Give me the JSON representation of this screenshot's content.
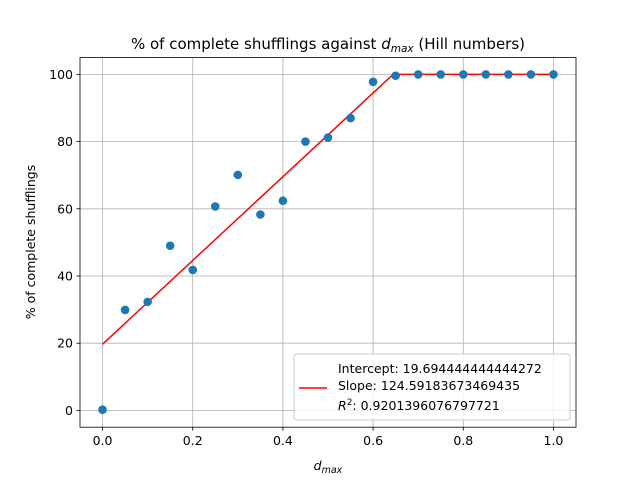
{
  "chart_data": {
    "type": "scatter",
    "title_prefix": "% of complete shufflings against ",
    "title_var": "d",
    "title_var_sub": "max",
    "title_suffix": " (Hill numbers)",
    "xlabel_var": "d",
    "xlabel_sub": "max",
    "ylabel": "% of complete shufflings",
    "xlim": [
      -0.05,
      1.05
    ],
    "ylim": [
      -5,
      105
    ],
    "xticks": [
      0.0,
      0.2,
      0.4,
      0.6,
      0.8,
      1.0
    ],
    "xtick_labels": [
      "0.0",
      "0.2",
      "0.4",
      "0.6",
      "0.8",
      "1.0"
    ],
    "yticks": [
      0,
      20,
      40,
      60,
      80,
      100
    ],
    "ytick_labels": [
      "0",
      "20",
      "40",
      "60",
      "80",
      "100"
    ],
    "grid": true,
    "legend_position": "lower-right",
    "points": {
      "color": "#1f77b4",
      "x": [
        0.0,
        0.05,
        0.1,
        0.15,
        0.2,
        0.25,
        0.3,
        0.35,
        0.4,
        0.45,
        0.5,
        0.55,
        0.6,
        0.65,
        0.7,
        0.75,
        0.8,
        0.85,
        0.9,
        0.95,
        1.0
      ],
      "y": [
        0.2,
        29.9,
        32.3,
        49.0,
        41.8,
        60.7,
        70.1,
        58.3,
        62.4,
        80.0,
        81.2,
        87.0,
        97.8,
        99.6,
        100,
        100,
        100,
        100,
        100,
        100,
        100
      ]
    },
    "fit_line": {
      "color": "#ff0000",
      "x": [
        0.0,
        0.6443,
        0.7,
        0.75,
        0.8,
        0.85,
        0.9,
        0.95,
        1.0
      ],
      "y": [
        19.694,
        100,
        100,
        100,
        100,
        100,
        100,
        100,
        100
      ]
    },
    "legend": {
      "line1": "Intercept: 19.694444444444272",
      "line2": "Slope: 124.59183673469435",
      "line3_value": ": 0.9201396076797721",
      "line3_var": "R",
      "line3_sup": "2"
    }
  }
}
